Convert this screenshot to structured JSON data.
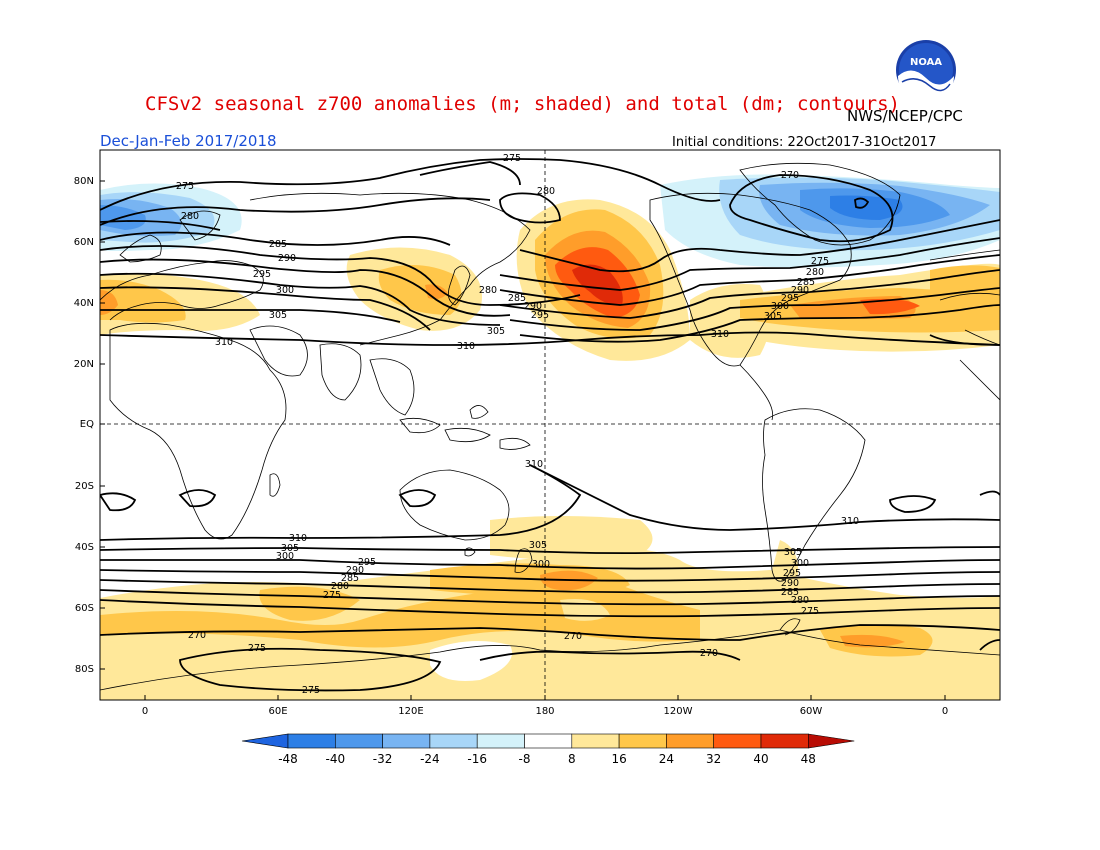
{
  "header": {
    "title": "CFSv2 seasonal z700 anomalies (m; shaded) and total (dm; contours)",
    "agency": "NWS/NCEP/CPC",
    "logo_text": "NOAA",
    "season": "Dec-Jan-Feb 2017/2018",
    "initial_conditions": "Initial conditions: 22Oct2017-31Oct2017"
  },
  "colors": {
    "title": "#e00000",
    "season": "#1a4fd8",
    "contour": "#000000",
    "coast": "#000000"
  },
  "axes": {
    "lat_labels": [
      "80N",
      "60N",
      "40N",
      "20N",
      "EQ",
      "20S",
      "40S",
      "60S",
      "80S"
    ],
    "lon_labels": [
      "0",
      "60E",
      "120E",
      "180",
      "120W",
      "60W",
      "0"
    ]
  },
  "colorbar": {
    "ticks": [
      "-48",
      "-40",
      "-32",
      "-24",
      "-16",
      "-8",
      "8",
      "16",
      "24",
      "32",
      "40",
      "48"
    ],
    "colors": [
      "#1e64e0",
      "#2d7fe6",
      "#4e98ec",
      "#78b4f2",
      "#a8d6f8",
      "#d4f2fa",
      "#ffffff",
      "#ffe89a",
      "#ffc74a",
      "#ff9d2a",
      "#ff5a10",
      "#e02a08",
      "#b80c04"
    ]
  },
  "contour_labels": [
    {
      "text": "275",
      "id": "c275-a"
    },
    {
      "text": "275",
      "id": "c275-b"
    },
    {
      "text": "280",
      "id": "c280-a"
    },
    {
      "text": "285",
      "id": "c285-a"
    },
    {
      "text": "290",
      "id": "c290-a"
    },
    {
      "text": "295",
      "id": "c295-a"
    },
    {
      "text": "300",
      "id": "c300-a"
    },
    {
      "text": "305",
      "id": "c305-a"
    },
    {
      "text": "310",
      "id": "c310-a"
    },
    {
      "text": "280",
      "id": "c280-b"
    },
    {
      "text": "270",
      "id": "c270-a"
    },
    {
      "text": "310",
      "id": "c310-b"
    },
    {
      "text": "305",
      "id": "c305-b"
    },
    {
      "text": "280",
      "id": "c280-c"
    },
    {
      "text": "285",
      "id": "c285-b"
    },
    {
      "text": "290",
      "id": "c290-b"
    },
    {
      "text": "295",
      "id": "c295-b"
    },
    {
      "text": "275",
      "id": "c275-c"
    },
    {
      "text": "280",
      "id": "c280-d"
    },
    {
      "text": "285",
      "id": "c285-c"
    },
    {
      "text": "290",
      "id": "c290-c"
    },
    {
      "text": "295",
      "id": "c295-c"
    },
    {
      "text": "300",
      "id": "c300-b"
    },
    {
      "text": "305",
      "id": "c305-c"
    },
    {
      "text": "310",
      "id": "c310-c"
    },
    {
      "text": "310",
      "id": "c310-d"
    },
    {
      "text": "310",
      "id": "c310-e"
    },
    {
      "text": "305",
      "id": "c305-d"
    },
    {
      "text": "300",
      "id": "c300-c"
    },
    {
      "text": "295",
      "id": "c295-d"
    },
    {
      "text": "290",
      "id": "c290-d"
    },
    {
      "text": "285",
      "id": "c285-d"
    },
    {
      "text": "280",
      "id": "c280-e"
    },
    {
      "text": "275",
      "id": "c275-d"
    },
    {
      "text": "305",
      "id": "c305-e"
    },
    {
      "text": "300",
      "id": "c300-d"
    },
    {
      "text": "270",
      "id": "c270-b"
    },
    {
      "text": "275",
      "id": "c275-e"
    },
    {
      "text": "275",
      "id": "c275-f"
    },
    {
      "text": "310",
      "id": "c310-f"
    },
    {
      "text": "305",
      "id": "c305-f"
    },
    {
      "text": "300",
      "id": "c300-e"
    },
    {
      "text": "295",
      "id": "c295-e"
    },
    {
      "text": "290",
      "id": "c290-e"
    },
    {
      "text": "285",
      "id": "c285-e"
    },
    {
      "text": "280",
      "id": "c280-f"
    },
    {
      "text": "275",
      "id": "c275-g"
    },
    {
      "text": "270",
      "id": "c270-c"
    },
    {
      "text": "270",
      "id": "c270-d"
    }
  ]
}
